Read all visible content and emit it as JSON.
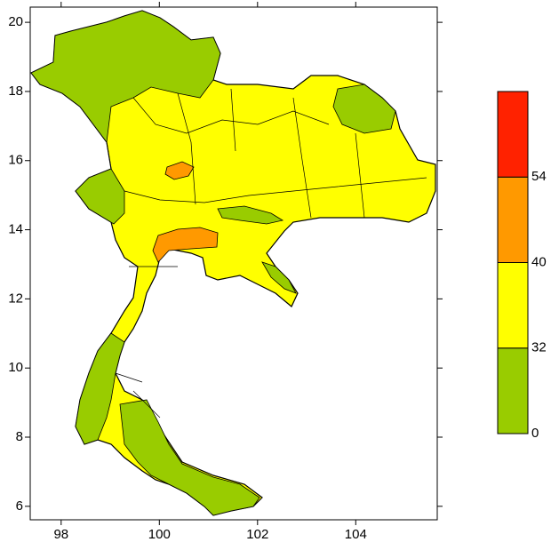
{
  "map": {
    "xlim": [
      97.37,
      105.66
    ],
    "ylim": [
      5.61,
      20.44
    ],
    "xticks": [
      98,
      100,
      102,
      104
    ],
    "yticks": [
      6,
      8,
      10,
      12,
      14,
      16,
      18,
      20
    ]
  },
  "legend": {
    "levels": [
      0,
      32,
      40,
      54
    ],
    "colors": [
      "#99cc00",
      "#ffff00",
      "#ff9900",
      "#ff2200"
    ]
  }
}
